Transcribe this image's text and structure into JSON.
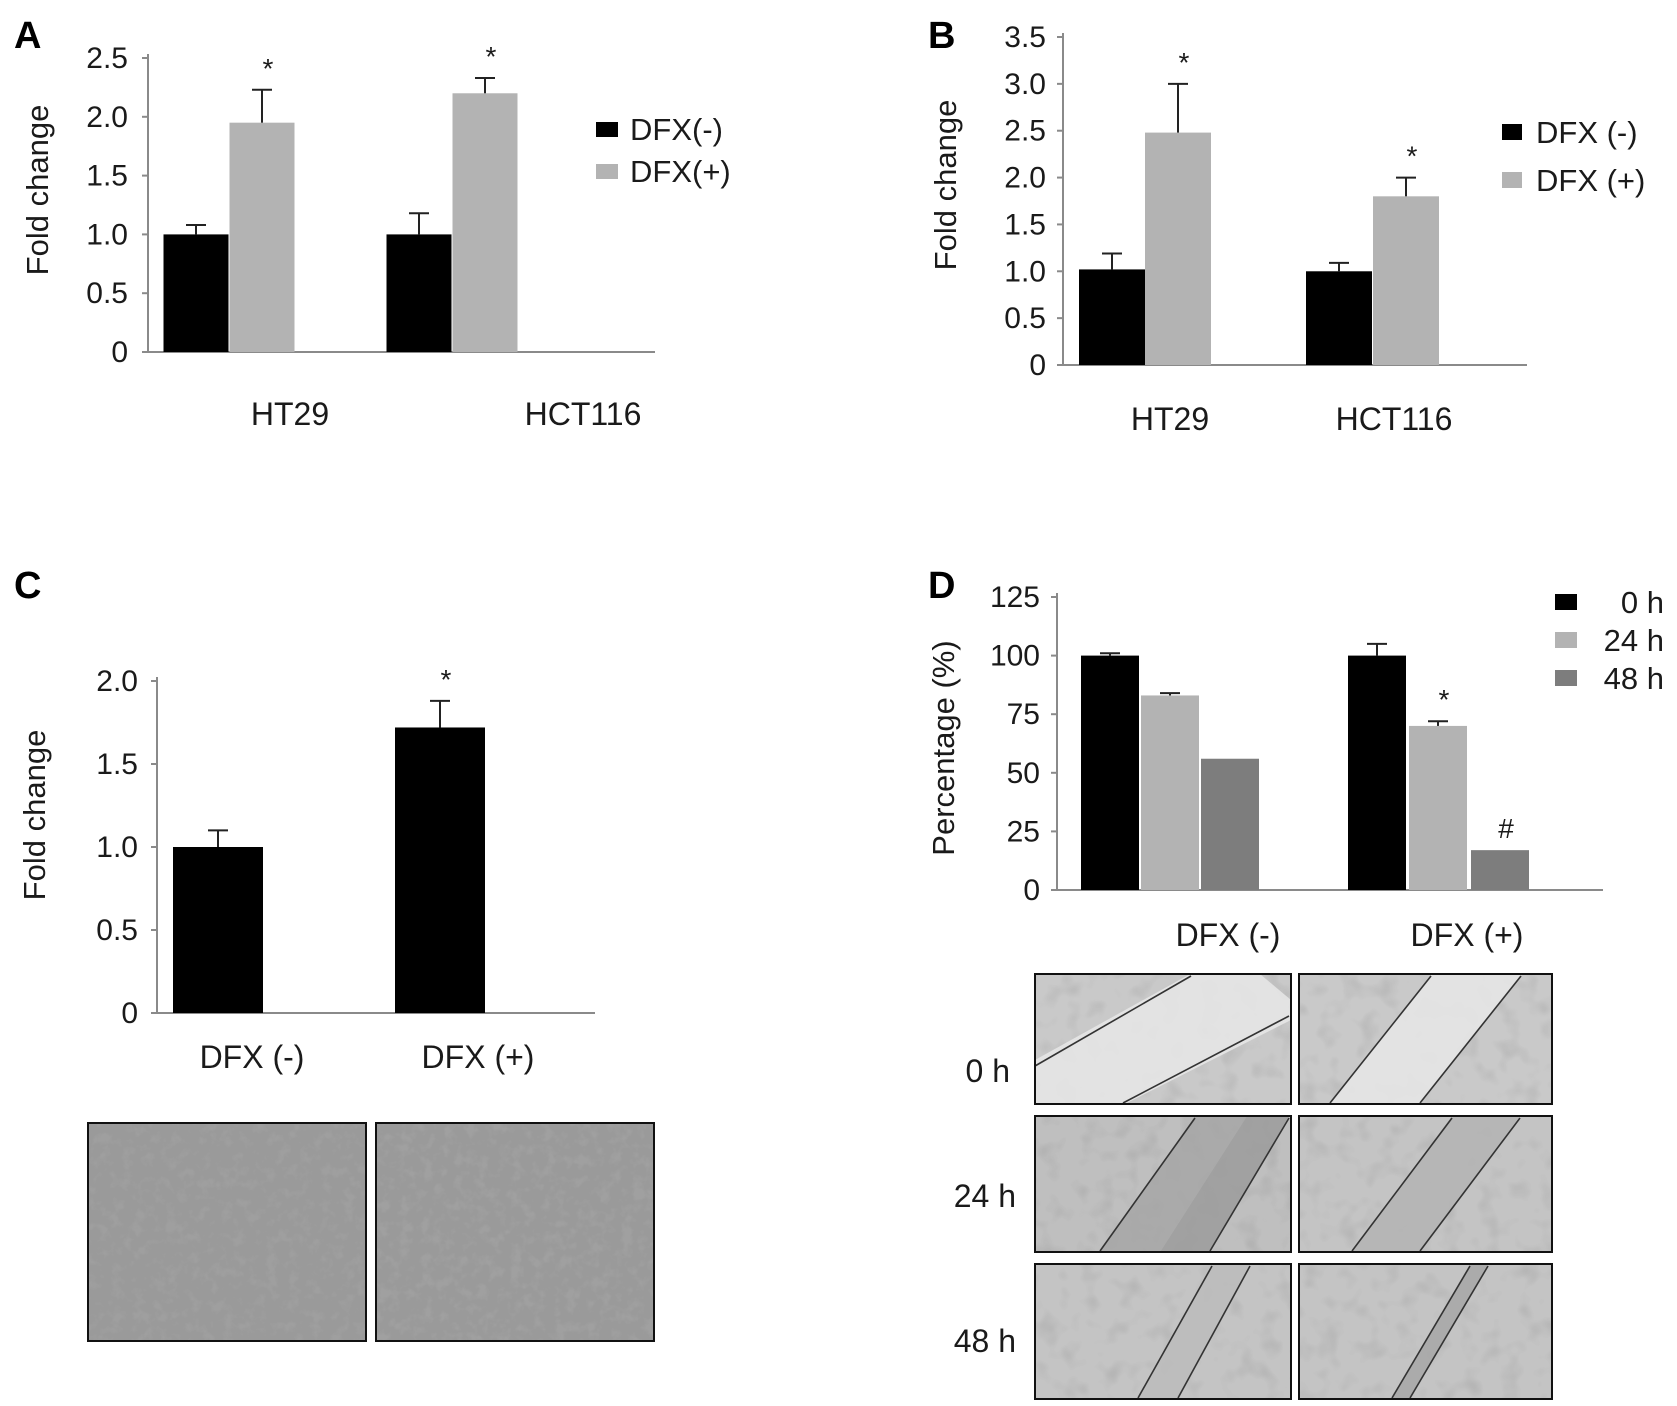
{
  "panels": [
    {
      "id": "A",
      "label": "A",
      "chart_data": {
        "type": "bar",
        "categories": [
          "HT29",
          "HCT116"
        ],
        "series": [
          {
            "name": "DFX(-)",
            "values": [
              1.0,
              1.0
            ],
            "errors": [
              0.08,
              0.18
            ],
            "color": "#000000"
          },
          {
            "name": "DFX(+)",
            "values": [
              1.95,
              2.2
            ],
            "errors": [
              0.28,
              0.13
            ],
            "color": "#b3b3b3"
          }
        ],
        "ylabel": "Fold change",
        "ylim": [
          0,
          2.5
        ],
        "yticks": [
          "0",
          "0.5",
          "1.0",
          "1.5",
          "2.0",
          "2.5"
        ],
        "annotations": [
          {
            "category": 0,
            "series": 1,
            "text": "*"
          },
          {
            "category": 1,
            "series": 1,
            "text": "*"
          }
        ],
        "legend": "right"
      }
    },
    {
      "id": "B",
      "label": "B",
      "chart_data": {
        "type": "bar",
        "categories": [
          "HT29",
          "HCT116"
        ],
        "series": [
          {
            "name": "DFX (-)",
            "values": [
              1.02,
              1.0
            ],
            "errors": [
              0.17,
              0.09
            ],
            "color": "#000000"
          },
          {
            "name": "DFX (+)",
            "values": [
              2.48,
              1.8
            ],
            "errors": [
              0.52,
              0.2
            ],
            "color": "#b3b3b3"
          }
        ],
        "ylabel": "Fold change",
        "ylim": [
          0,
          3.5
        ],
        "yticks": [
          "0",
          "0.5",
          "1.0",
          "1.5",
          "2.0",
          "2.5",
          "3.0",
          "3.5"
        ],
        "annotations": [
          {
            "category": 0,
            "series": 1,
            "text": "*"
          },
          {
            "category": 1,
            "series": 1,
            "text": "*"
          }
        ],
        "legend": "right"
      }
    },
    {
      "id": "C",
      "label": "C",
      "chart_data": {
        "type": "bar",
        "categories": [
          "DFX (-)",
          "DFX (+)"
        ],
        "series": [
          {
            "name": "",
            "values": [
              1.0,
              1.72
            ],
            "errors": [
              0.1,
              0.16
            ],
            "color": "#000000"
          }
        ],
        "ylabel": "Fold change",
        "ylim": [
          0,
          2.0
        ],
        "yticks": [
          "0",
          "0.5",
          "1.0",
          "1.5",
          "2.0"
        ],
        "annotations": [
          {
            "category": 1,
            "series": 0,
            "text": "*"
          }
        ],
        "legend": "none"
      },
      "micrographs": [
        "DFX (-)",
        "DFX (+)"
      ]
    },
    {
      "id": "D",
      "label": "D",
      "chart_data": {
        "type": "bar",
        "categories": [
          "DFX (-)",
          "DFX (+)"
        ],
        "series": [
          {
            "name": "0 h",
            "values": [
              100,
              100
            ],
            "errors": [
              1,
              5
            ],
            "color": "#000000"
          },
          {
            "name": "24 h",
            "values": [
              83,
              70
            ],
            "errors": [
              1,
              2
            ],
            "color": "#b3b3b3"
          },
          {
            "name": "48 h",
            "values": [
              56,
              17
            ],
            "errors": [
              0,
              0
            ],
            "color": "#7d7d7d"
          }
        ],
        "ylabel": "Percentage (%)",
        "ylim": [
          0,
          125
        ],
        "yticks": [
          "0",
          "25",
          "50",
          "75",
          "100",
          "125"
        ],
        "annotations": [
          {
            "category": 1,
            "series": 1,
            "text": "*"
          },
          {
            "category": 1,
            "series": 2,
            "text": "#"
          }
        ],
        "legend": "top-right"
      },
      "micrograph_rows": [
        "0 h",
        "24 h",
        "48 h"
      ]
    }
  ]
}
